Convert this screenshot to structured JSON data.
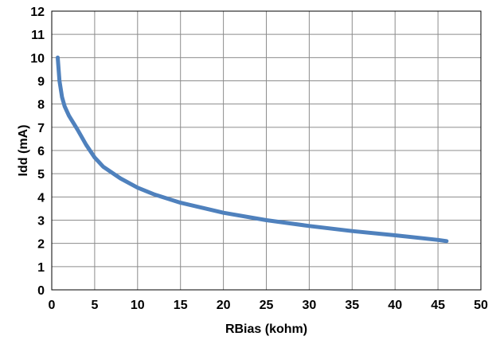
{
  "chart_data": {
    "type": "line",
    "title": "",
    "xlabel": "RBias (kohm)",
    "ylabel": "Idd (mA)",
    "xlim": [
      0,
      50
    ],
    "ylim": [
      0,
      12
    ],
    "x_ticks": [
      0,
      5,
      10,
      15,
      20,
      25,
      30,
      35,
      40,
      45,
      50
    ],
    "y_ticks": [
      0,
      1,
      2,
      3,
      4,
      5,
      6,
      7,
      8,
      9,
      10,
      11,
      12
    ],
    "grid": true,
    "legend": "none",
    "series": [
      {
        "color": "#4f81bd",
        "x": [
          0.7,
          0.9,
          1.2,
          1.5,
          2,
          3,
          4,
          5,
          6,
          8,
          10,
          12,
          15,
          20,
          25,
          30,
          35,
          40,
          45,
          46
        ],
        "y": [
          10.0,
          9.0,
          8.3,
          7.9,
          7.5,
          6.9,
          6.25,
          5.7,
          5.3,
          4.8,
          4.4,
          4.1,
          3.75,
          3.32,
          3.0,
          2.75,
          2.53,
          2.35,
          2.15,
          2.1
        ]
      }
    ]
  }
}
